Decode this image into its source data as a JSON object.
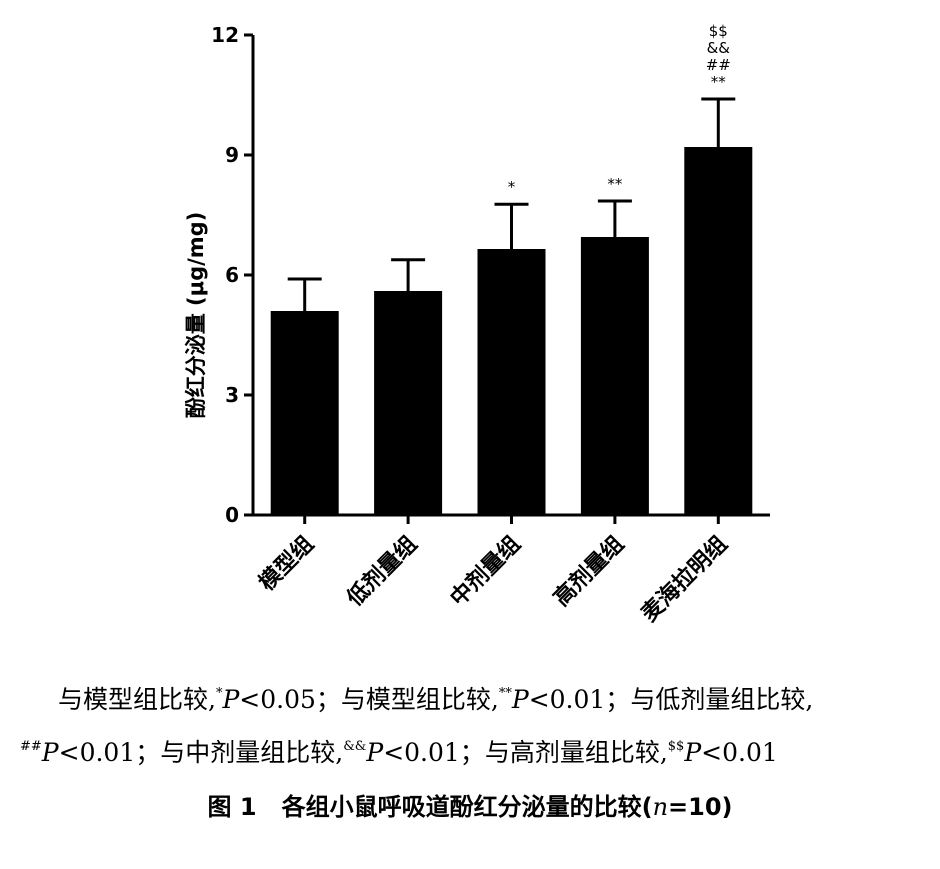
{
  "chart_data": {
    "type": "bar",
    "ylabel": "酚红分泌量 (μg/mg)",
    "ylim": [
      0,
      12
    ],
    "yticks": [
      0,
      3,
      6,
      9,
      12
    ],
    "categories": [
      "模型组",
      "低剂量组",
      "中剂量组",
      "高剂量组",
      "麦海拉明组"
    ],
    "values": [
      5.1,
      5.6,
      6.65,
      6.95,
      9.2
    ],
    "errors": [
      0.8,
      0.78,
      1.12,
      0.9,
      1.2
    ],
    "annotations": [
      "",
      "",
      "*",
      "**",
      "$$\n&&\n##\n**"
    ],
    "bar_color": "#000000",
    "grid": false
  },
  "notes": {
    "line1": {
      "t1": "与模型组比较,",
      "s1": "*",
      "p1": "P",
      "v1": "<0.05；",
      "t2": "与模型组比较,",
      "s2": "**",
      "p2": "P",
      "v2": "<0.01；",
      "t3": "与低剂量组比较,"
    },
    "line2": {
      "s1": "##",
      "p1": "P",
      "v1": "<0.01；",
      "t2": "与中剂量组比较,",
      "s2": "&&",
      "p2": "P",
      "v2": "<0.01；",
      "t3": "与高剂量组比较,",
      "s3": "$$",
      "p3": "P",
      "v3": "<0.01"
    }
  },
  "caption": {
    "label": "图 1",
    "title": "各组小鼠呼吸道酚红分泌量的比较(",
    "n_var": "n",
    "n_val": "=10)"
  }
}
